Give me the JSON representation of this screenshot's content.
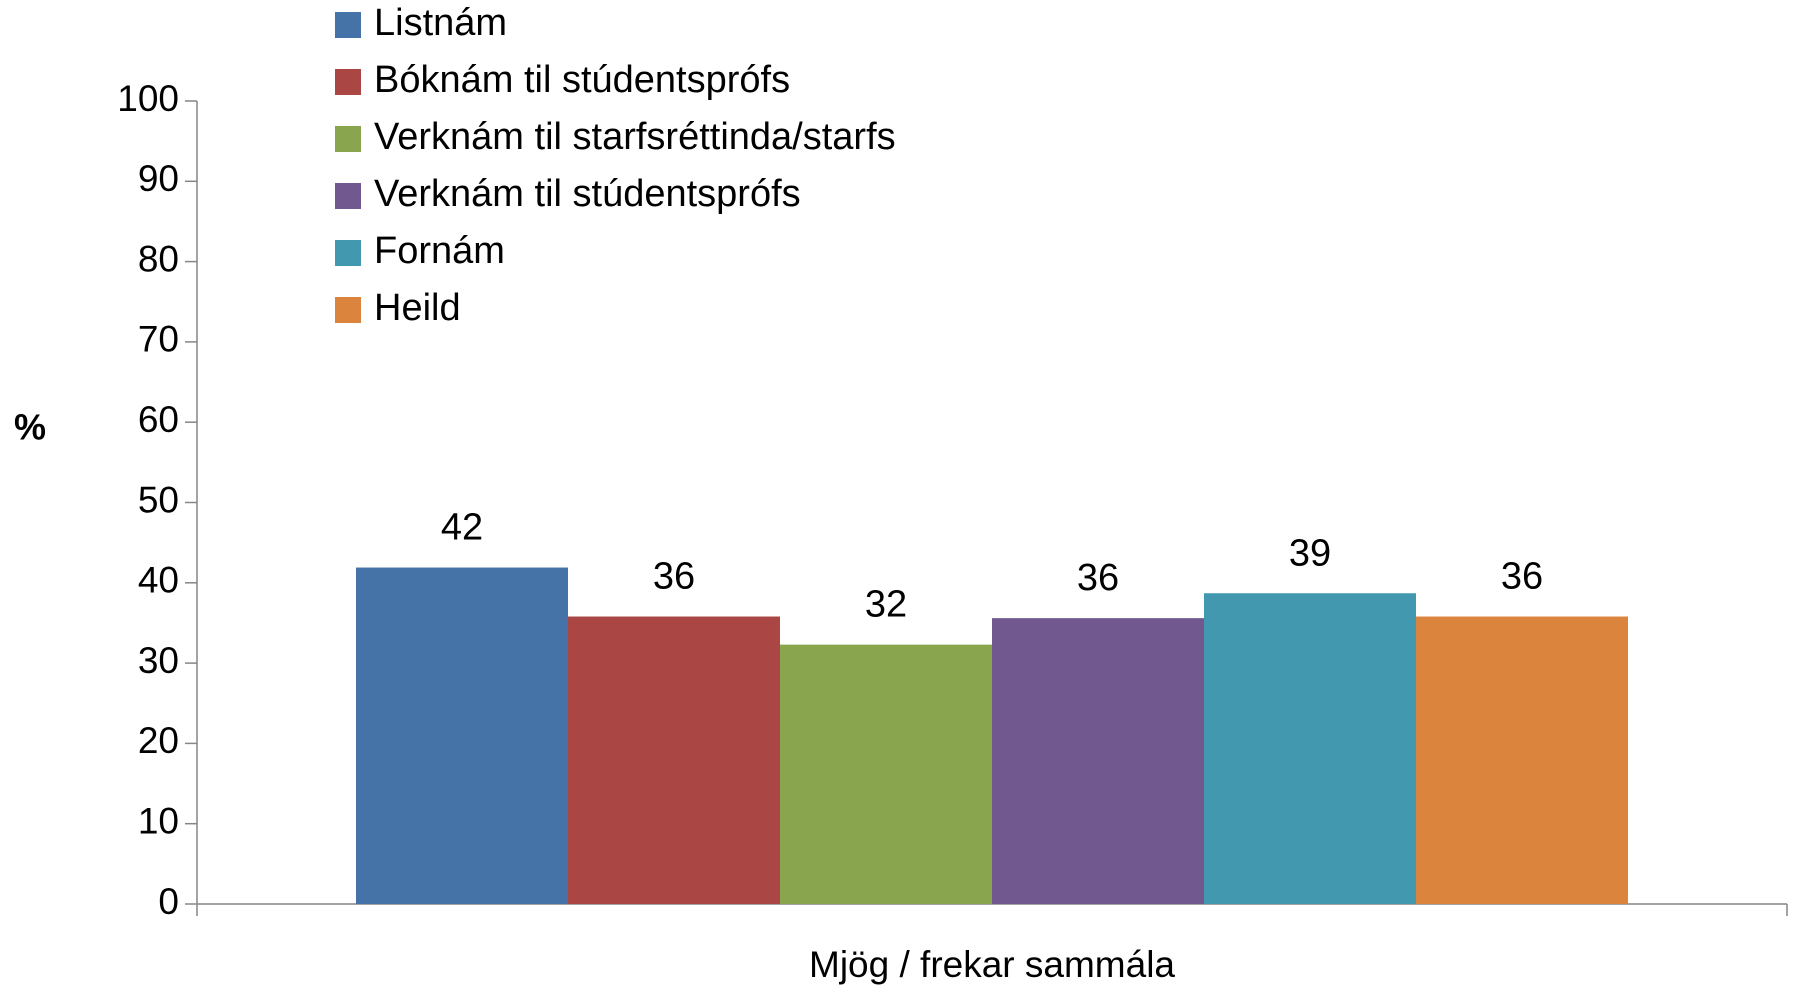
{
  "chart_data": {
    "type": "bar",
    "categories": [
      "Mjög / frekar sammála"
    ],
    "y_label": "%",
    "series": [
      {
        "name": "Listnám",
        "color": "#4572a7",
        "values": [
          41.9
        ],
        "value_labels": [
          "42"
        ]
      },
      {
        "name": "Bóknám til stúdentsprófs",
        "color": "#aa4643",
        "values": [
          35.8
        ],
        "value_labels": [
          "36"
        ]
      },
      {
        "name": "Verknám til starfsréttinda/starfs",
        "color": "#89a54e",
        "values": [
          32.3
        ],
        "value_labels": [
          "32"
        ]
      },
      {
        "name": "Verknám til stúdentsprófs",
        "color": "#71588f",
        "values": [
          35.6
        ],
        "value_labels": [
          "36"
        ]
      },
      {
        "name": "Fornám",
        "color": "#4198af",
        "values": [
          38.7
        ],
        "value_labels": [
          "39"
        ]
      },
      {
        "name": "Heild",
        "color": "#db843d",
        "values": [
          35.8
        ],
        "value_labels": [
          "36"
        ]
      }
    ],
    "ylim": [
      0,
      100
    ],
    "yticks": [
      0,
      10,
      20,
      30,
      40,
      50,
      60,
      70,
      80,
      90,
      100
    ],
    "grid": false,
    "legend": "top-left"
  }
}
